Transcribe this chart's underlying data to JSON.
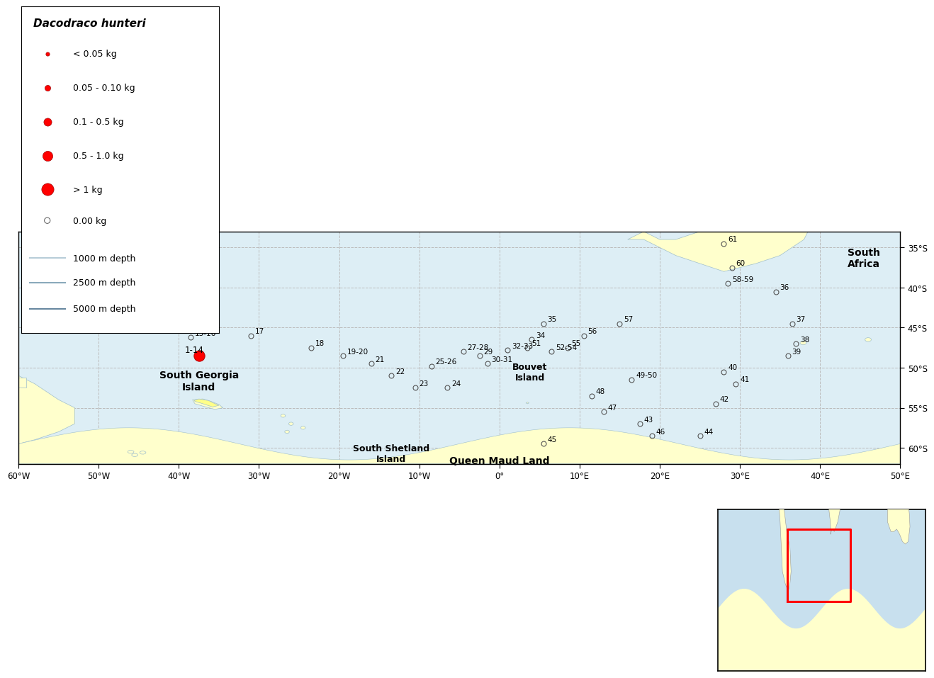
{
  "lon_min": -60,
  "lon_max": 50,
  "lat_min": -62,
  "lat_max": -33,
  "background_color": "#ffffff",
  "ocean_color": "#ddeef5",
  "land_color": "#ffffcc",
  "coastline_color": "#a0bfcc",
  "grid_color": "#bbbbbb",
  "stations_empty": [
    {
      "lon": -38.5,
      "lat": -46.2,
      "label": "15-16"
    },
    {
      "lon": -31.0,
      "lat": -46.0,
      "label": "17"
    },
    {
      "lon": -23.5,
      "lat": -47.5,
      "label": "18"
    },
    {
      "lon": -19.5,
      "lat": -48.5,
      "label": "19-20"
    },
    {
      "lon": -16.0,
      "lat": -49.5,
      "label": "21"
    },
    {
      "lon": -13.5,
      "lat": -51.0,
      "label": "22"
    },
    {
      "lon": -10.5,
      "lat": -52.5,
      "label": "23"
    },
    {
      "lon": -6.5,
      "lat": -52.5,
      "label": "24"
    },
    {
      "lon": -8.5,
      "lat": -49.8,
      "label": "25-26"
    },
    {
      "lon": -4.5,
      "lat": -48.0,
      "label": "27-28"
    },
    {
      "lon": -2.5,
      "lat": -48.5,
      "label": "29"
    },
    {
      "lon": -1.5,
      "lat": -49.5,
      "label": "30-31"
    },
    {
      "lon": 1.0,
      "lat": -47.8,
      "label": "32-33"
    },
    {
      "lon": 4.0,
      "lat": -46.5,
      "label": "34"
    },
    {
      "lon": 5.5,
      "lat": -44.5,
      "label": "35"
    },
    {
      "lon": 3.5,
      "lat": -47.5,
      "label": "51"
    },
    {
      "lon": 6.5,
      "lat": -48.0,
      "label": "52-54"
    },
    {
      "lon": 8.5,
      "lat": -47.5,
      "label": "55"
    },
    {
      "lon": 10.5,
      "lat": -46.0,
      "label": "56"
    },
    {
      "lon": 15.0,
      "lat": -44.5,
      "label": "57"
    },
    {
      "lon": 28.5,
      "lat": -39.5,
      "label": "58-59"
    },
    {
      "lon": 29.0,
      "lat": -37.5,
      "label": "60"
    },
    {
      "lon": 28.0,
      "lat": -34.5,
      "label": "61"
    },
    {
      "lon": 34.5,
      "lat": -40.5,
      "label": "36"
    },
    {
      "lon": 36.5,
      "lat": -44.5,
      "label": "37"
    },
    {
      "lon": 37.0,
      "lat": -47.0,
      "label": "38"
    },
    {
      "lon": 36.0,
      "lat": -48.5,
      "label": "39"
    },
    {
      "lon": 28.0,
      "lat": -50.5,
      "label": "40"
    },
    {
      "lon": 29.5,
      "lat": -52.0,
      "label": "41"
    },
    {
      "lon": 27.0,
      "lat": -54.5,
      "label": "42"
    },
    {
      "lon": 17.5,
      "lat": -57.0,
      "label": "43"
    },
    {
      "lon": 25.0,
      "lat": -58.5,
      "label": "44"
    },
    {
      "lon": 5.5,
      "lat": -59.5,
      "label": "45"
    },
    {
      "lon": 19.0,
      "lat": -58.5,
      "label": "46"
    },
    {
      "lon": 13.0,
      "lat": -55.5,
      "label": "47"
    },
    {
      "lon": 11.5,
      "lat": -53.5,
      "label": "48"
    },
    {
      "lon": 16.5,
      "lat": -51.5,
      "label": "49-50"
    }
  ],
  "stations_present": [
    {
      "lon": -37.5,
      "lat": -48.5,
      "size": 120,
      "label": "1-14"
    }
  ],
  "place_labels": [
    {
      "lon": -37.5,
      "lat": -50.3,
      "text": "South Georgia\nIsland",
      "fontsize": 10,
      "ha": "center"
    },
    {
      "lon": 3.8,
      "lat": -49.3,
      "text": "Bouvet\nIsland",
      "fontsize": 9,
      "ha": "center"
    },
    {
      "lon": 0.0,
      "lat": -61.0,
      "text": "Queen Maud Land",
      "fontsize": 10,
      "ha": "center"
    },
    {
      "lon": -13.5,
      "lat": -59.5,
      "text": "South Shetland\nIsland",
      "fontsize": 9,
      "ha": "center"
    },
    {
      "lon": 45.5,
      "lat": -35.0,
      "text": "South\nAfrica",
      "fontsize": 10,
      "ha": "center"
    }
  ],
  "legend_sizes": [
    15,
    35,
    65,
    105,
    155
  ],
  "legend_labels": [
    "< 0.05 kg",
    "0.05 - 0.10 kg",
    "0.1 - 0.5 kg",
    "0.5 - 1.0 kg",
    "> 1 kg"
  ],
  "depth_line_colors": [
    "#b8cdd8",
    "#8aaabb",
    "#6888a0"
  ],
  "depth_line_labels": [
    "1000 m depth",
    "2500 m depth",
    "5000 m depth"
  ],
  "xticks": [
    -60,
    -50,
    -40,
    -30,
    -20,
    -10,
    0,
    10,
    20,
    30,
    40,
    50
  ],
  "yticks": [
    -35,
    -40,
    -45,
    -50,
    -55,
    -60
  ]
}
